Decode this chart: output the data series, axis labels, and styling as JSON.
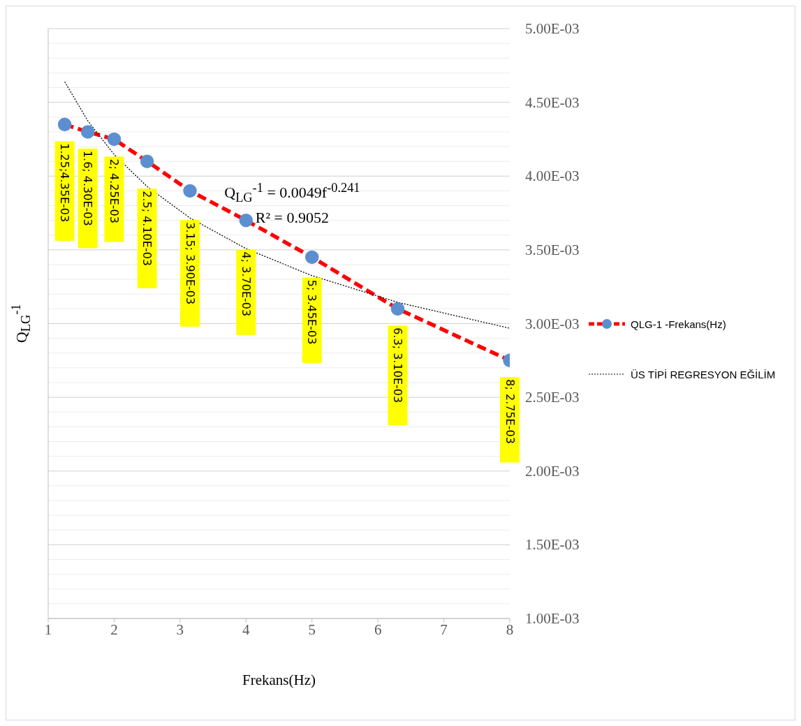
{
  "chart_data": {
    "type": "line",
    "xlabel": "Frekans(Hz)",
    "ylabel": "Q$_{LG}$$^{-1}$",
    "x": [
      1.25,
      1.6,
      2,
      2.5,
      3.15,
      4,
      5,
      6.3,
      8
    ],
    "series": [
      {
        "name": "QLG-1 -Frekans(Hz)",
        "color": "#ff0000",
        "line_style": "dashed",
        "marker": "circle",
        "values": [
          0.00435,
          0.0043,
          0.00425,
          0.0041,
          0.0039,
          0.0037,
          0.00345,
          0.0031,
          0.00275
        ]
      },
      {
        "name": "ÜS TİPİ REGRESYON EĞİLİM",
        "color": "#000000",
        "line_style": "dotted",
        "marker": "none",
        "x": [
          1.25,
          1.6,
          2,
          2.5,
          3.15,
          4,
          5,
          6.3,
          8
        ],
        "values": [
          0.00464,
          0.004375,
          0.004146,
          0.003929,
          0.003716,
          0.003508,
          0.003325,
          0.003144,
          0.002968
        ]
      }
    ],
    "xlim": [
      1,
      8
    ],
    "xticks": [
      1,
      2,
      3,
      4,
      5,
      6,
      7,
      8
    ],
    "ylim": [
      0.001,
      0.005
    ],
    "yticks": [
      {
        "value": 0.001,
        "label": "1.00E-03"
      },
      {
        "value": 0.0011,
        "label": null
      },
      {
        "value": 0.0012,
        "label": null
      },
      {
        "value": 0.0013,
        "label": null
      },
      {
        "value": 0.0014,
        "label": null
      },
      {
        "value": 0.0015,
        "label": "1.50E-03"
      },
      {
        "value": 0.0016,
        "label": null
      },
      {
        "value": 0.0017,
        "label": null
      },
      {
        "value": 0.0018,
        "label": null
      },
      {
        "value": 0.0019,
        "label": null
      },
      {
        "value": 0.002,
        "label": "2.00E-03"
      },
      {
        "value": 0.0021,
        "label": null
      },
      {
        "value": 0.0022,
        "label": null
      },
      {
        "value": 0.0023,
        "label": null
      },
      {
        "value": 0.0024,
        "label": null
      },
      {
        "value": 0.0025,
        "label": "2.50E-03"
      },
      {
        "value": 0.0026,
        "label": null
      },
      {
        "value": 0.0027,
        "label": null
      },
      {
        "value": 0.0028,
        "label": null
      },
      {
        "value": 0.0029,
        "label": null
      },
      {
        "value": 0.003,
        "label": "3.00E-03"
      },
      {
        "value": 0.0031,
        "label": null
      },
      {
        "value": 0.0032,
        "label": null
      },
      {
        "value": 0.0033,
        "label": null
      },
      {
        "value": 0.0034,
        "label": null
      },
      {
        "value": 0.0035,
        "label": "3.50E-03"
      },
      {
        "value": 0.0036,
        "label": null
      },
      {
        "value": 0.0037,
        "label": null
      },
      {
        "value": 0.0038,
        "label": null
      },
      {
        "value": 0.0039,
        "label": null
      },
      {
        "value": 0.004,
        "label": "4.00E-03"
      },
      {
        "value": 0.0041,
        "label": null
      },
      {
        "value": 0.0042,
        "label": null
      },
      {
        "value": 0.0043,
        "label": null
      },
      {
        "value": 0.0044,
        "label": null
      },
      {
        "value": 0.0045,
        "label": "4.50E-03"
      },
      {
        "value": 0.0046,
        "label": null
      },
      {
        "value": 0.0047,
        "label": null
      },
      {
        "value": 0.0048,
        "label": null
      },
      {
        "value": 0.0049,
        "label": null
      },
      {
        "value": 0.005,
        "label": "5.00E-03"
      }
    ],
    "grid": "y",
    "legend": "right",
    "annotations": [
      "Q$_{LG}$$^{-1}$ = 0.0049f$^{-0.241}$",
      "R² = 0.9052",
      {
        "text": "1.25;4.35E-03",
        "x": 1.25,
        "y": 0.00435
      },
      {
        "text": "1.6; 4.30E-03",
        "x": 1.6,
        "y": 0.0043
      },
      {
        "text": "2; 4.25E-03",
        "x": 2,
        "y": 0.00425
      },
      {
        "text": "2.5; 4.10E-03",
        "x": 2.5,
        "y": 0.0041
      },
      {
        "text": "3.15; 3.90E-03",
        "x": 3.15,
        "y": 0.0039
      },
      {
        "text": "4; 3.70E-03",
        "x": 4,
        "y": 0.0037
      },
      {
        "text": "5; 3.45E-03",
        "x": 5,
        "y": 0.00345
      },
      {
        "text": "6.3; 3.10E-03",
        "x": 6.3,
        "y": 0.0031
      },
      {
        "text": "8; 2.75E-03",
        "x": 8,
        "y": 0.00275
      }
    ]
  }
}
